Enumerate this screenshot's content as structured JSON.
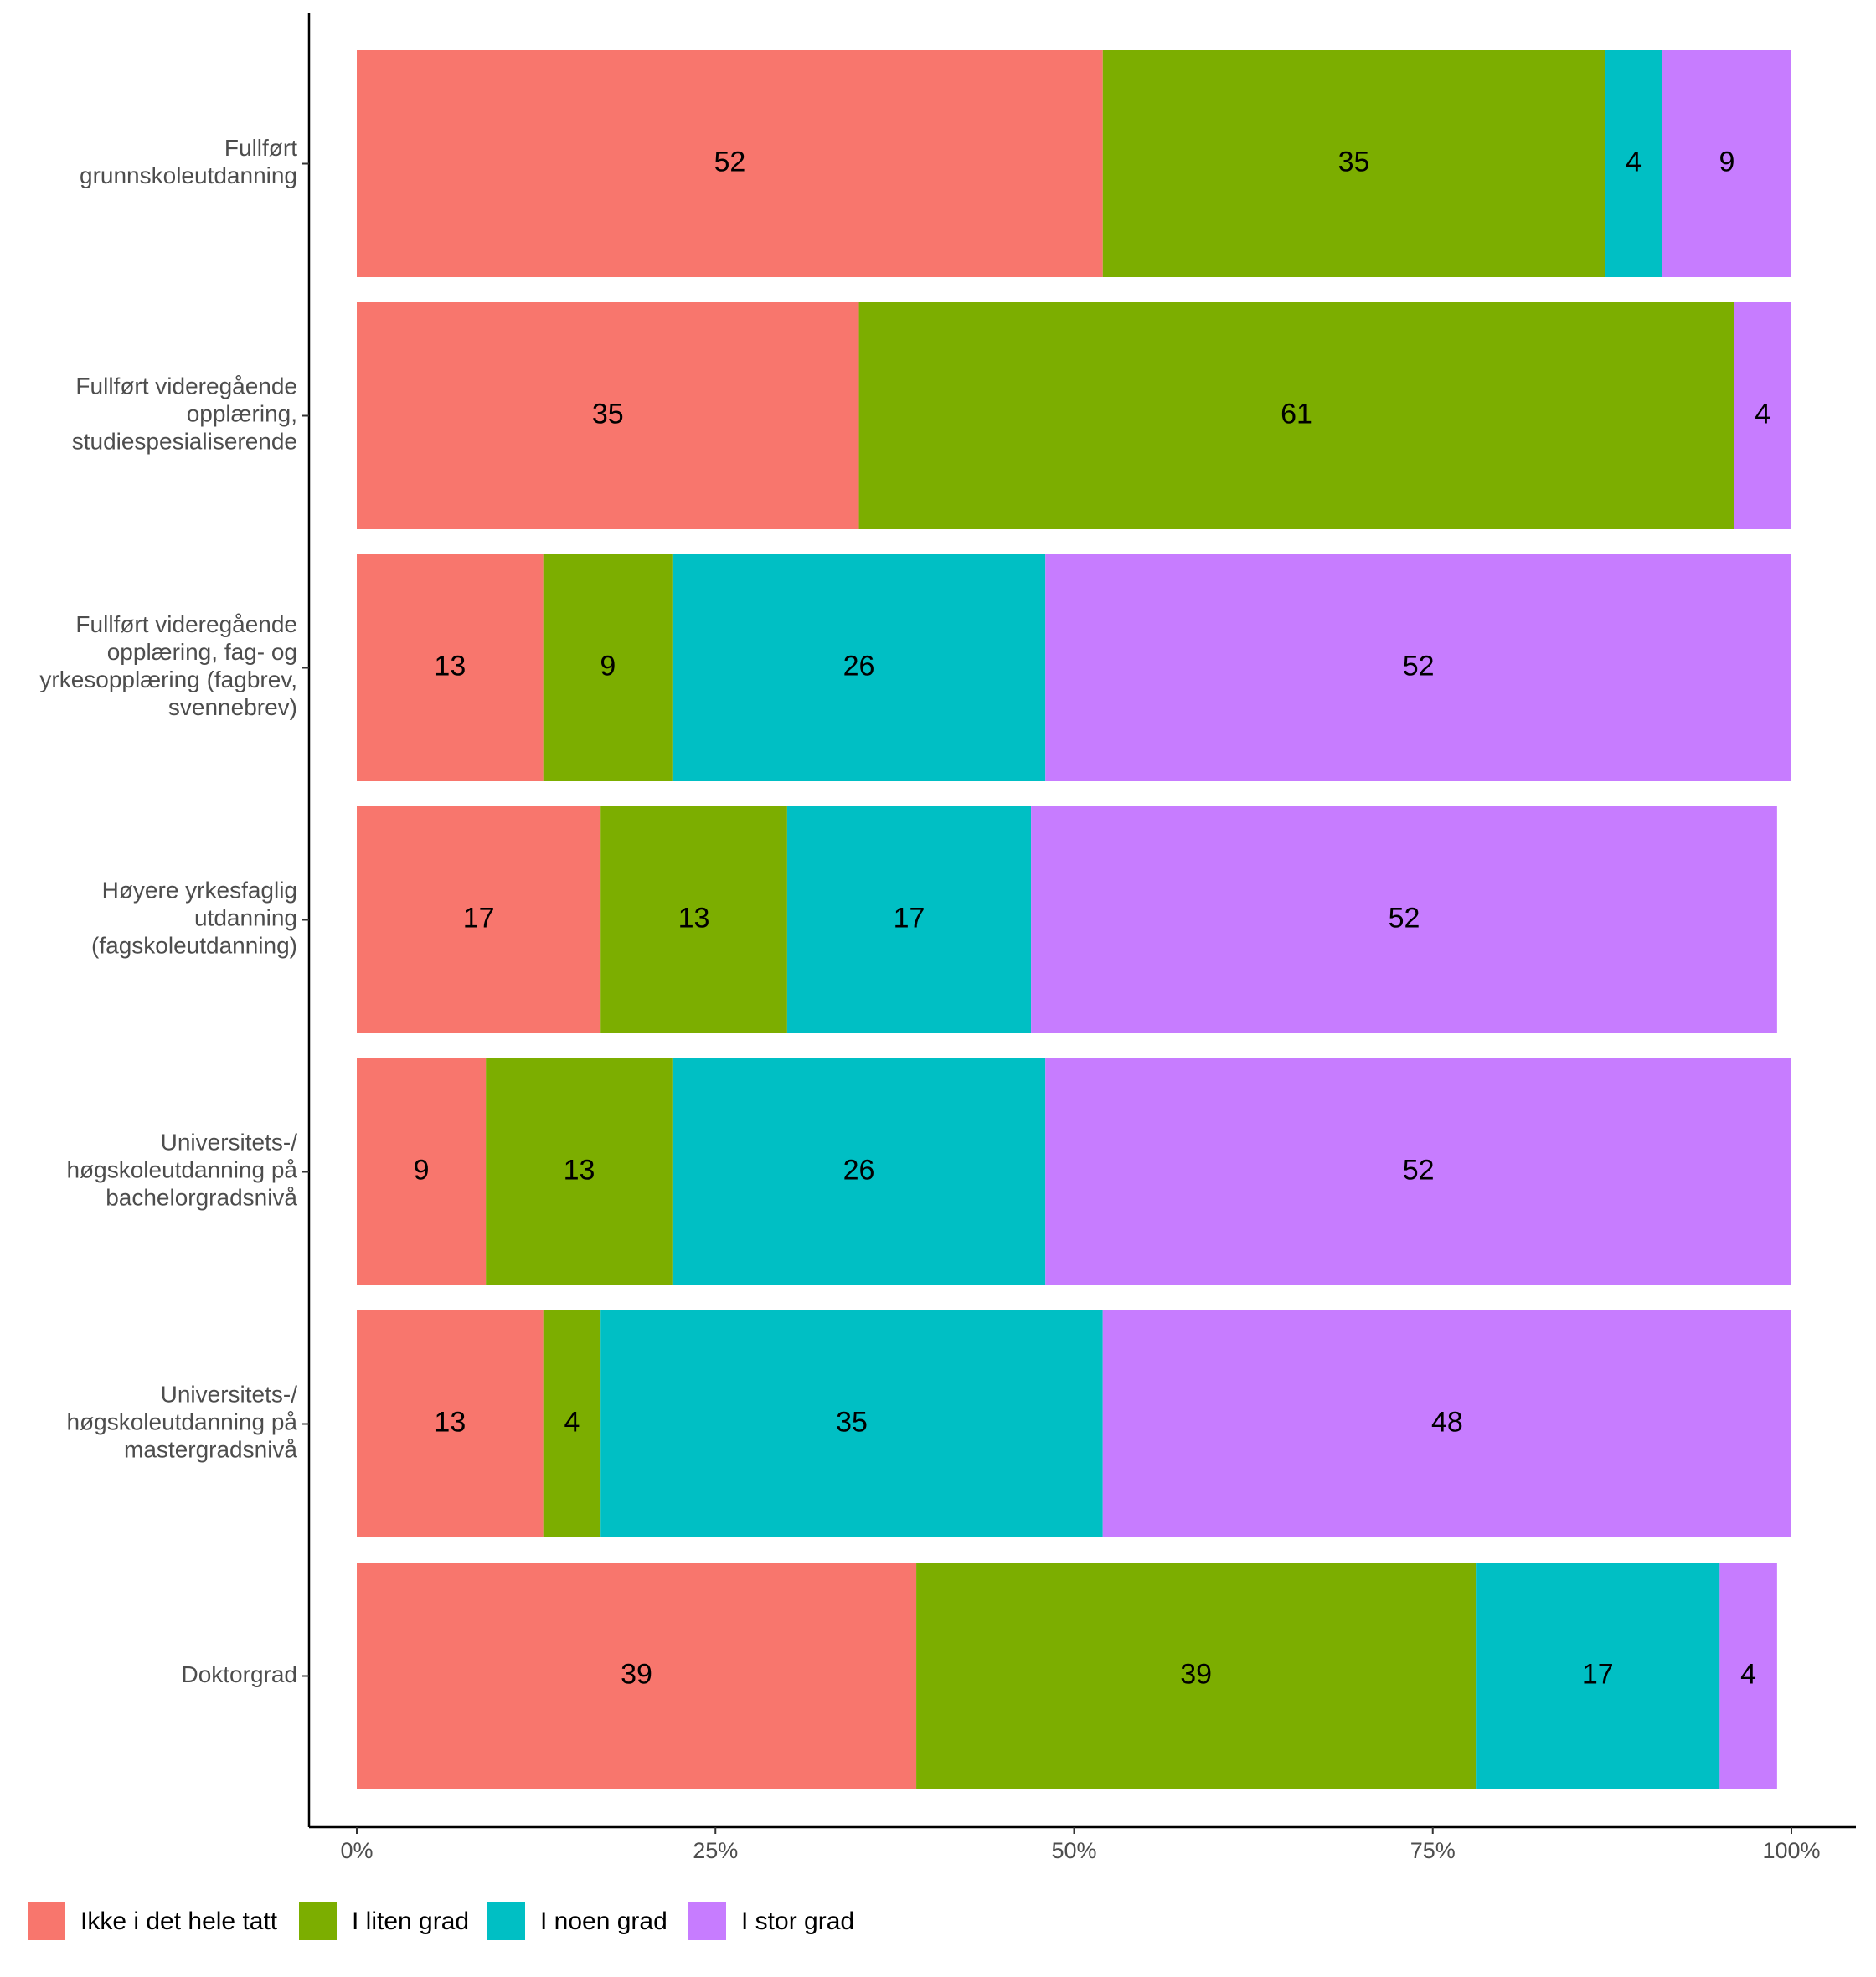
{
  "chart_data": {
    "type": "stacked_bar_horizontal",
    "categories": [
      "Fullført\ngrunnskoleutdanning",
      "Fullført videregående\nopplæring,\nstudiespesialiserende",
      "Fullført videregående\nopplæring, fag- og\nyrkesopplæring (fagbrev,\nsvennebrev)",
      "Høyere yrkesfaglig\nutdanning\n(fagskoleutdanning)",
      "Universitets-/\nhøgskoleutdanning på\nbachelorgradsnivå",
      "Universitets-/\nhøgskoleutdanning på\nmastergradsnivå",
      "Doktorgrad"
    ],
    "series": [
      {
        "name": "Ikke i det hele tatt",
        "color": "#F8766D",
        "values": [
          52,
          35,
          13,
          17,
          9,
          13,
          39
        ]
      },
      {
        "name": "I liten grad",
        "color": "#7CAE00",
        "values": [
          35,
          61,
          9,
          13,
          13,
          4,
          39
        ]
      },
      {
        "name": "I noen grad",
        "color": "#00BFC4",
        "values": [
          4,
          null,
          26,
          17,
          26,
          35,
          17
        ]
      },
      {
        "name": "I stor grad",
        "color": "#C77CFF",
        "values": [
          9,
          4,
          52,
          52,
          52,
          48,
          4
        ]
      }
    ],
    "xlim": [
      0,
      100
    ],
    "xticks": [
      {
        "value": 0,
        "label": "0%"
      },
      {
        "value": 25,
        "label": "25%"
      },
      {
        "value": 50,
        "label": "50%"
      },
      {
        "value": 75,
        "label": "75%"
      },
      {
        "value": 100,
        "label": "100%"
      }
    ],
    "legend": "bottom-left"
  }
}
